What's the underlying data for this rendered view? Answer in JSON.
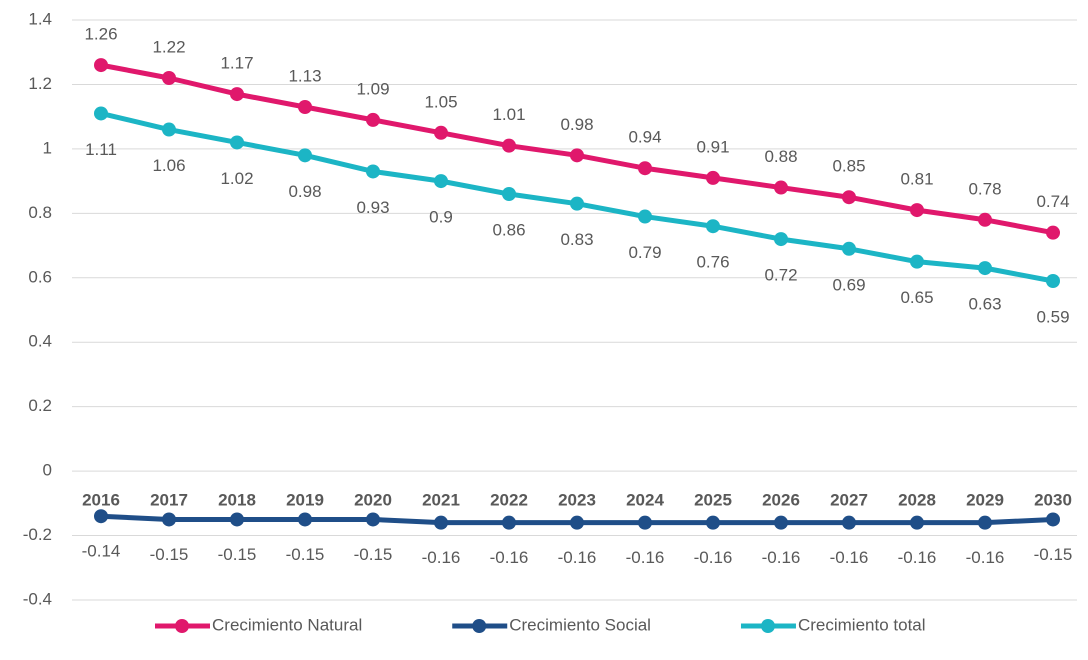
{
  "chart_data": {
    "type": "line",
    "categories": [
      "2016",
      "2017",
      "2018",
      "2019",
      "2020",
      "2021",
      "2022",
      "2023",
      "2024",
      "2025",
      "2026",
      "2027",
      "2028",
      "2029",
      "2030"
    ],
    "series": [
      {
        "name": "Crecimiento Natural",
        "color": "#e0186c",
        "values": [
          1.26,
          1.22,
          1.17,
          1.13,
          1.09,
          1.05,
          1.01,
          0.98,
          0.94,
          0.91,
          0.88,
          0.85,
          0.81,
          0.78,
          0.74
        ]
      },
      {
        "name": "Crecimiento Social",
        "color": "#1f4e88",
        "values": [
          -0.14,
          -0.15,
          -0.15,
          -0.15,
          -0.15,
          -0.16,
          -0.16,
          -0.16,
          -0.16,
          -0.16,
          -0.16,
          -0.16,
          -0.16,
          -0.16,
          -0.15
        ]
      },
      {
        "name": "Crecimiento total",
        "color": "#1cb5c5",
        "values": [
          1.11,
          1.06,
          1.02,
          0.98,
          0.93,
          0.9,
          0.86,
          0.83,
          0.79,
          0.76,
          0.72,
          0.69,
          0.65,
          0.63,
          0.59
        ]
      }
    ],
    "ylim": [
      -0.4,
      1.4
    ],
    "yticks": [
      -0.4,
      -0.2,
      0,
      0.2,
      0.4,
      0.6,
      0.8,
      1,
      1.2,
      1.4
    ],
    "grid": true,
    "legend": "bottom"
  }
}
